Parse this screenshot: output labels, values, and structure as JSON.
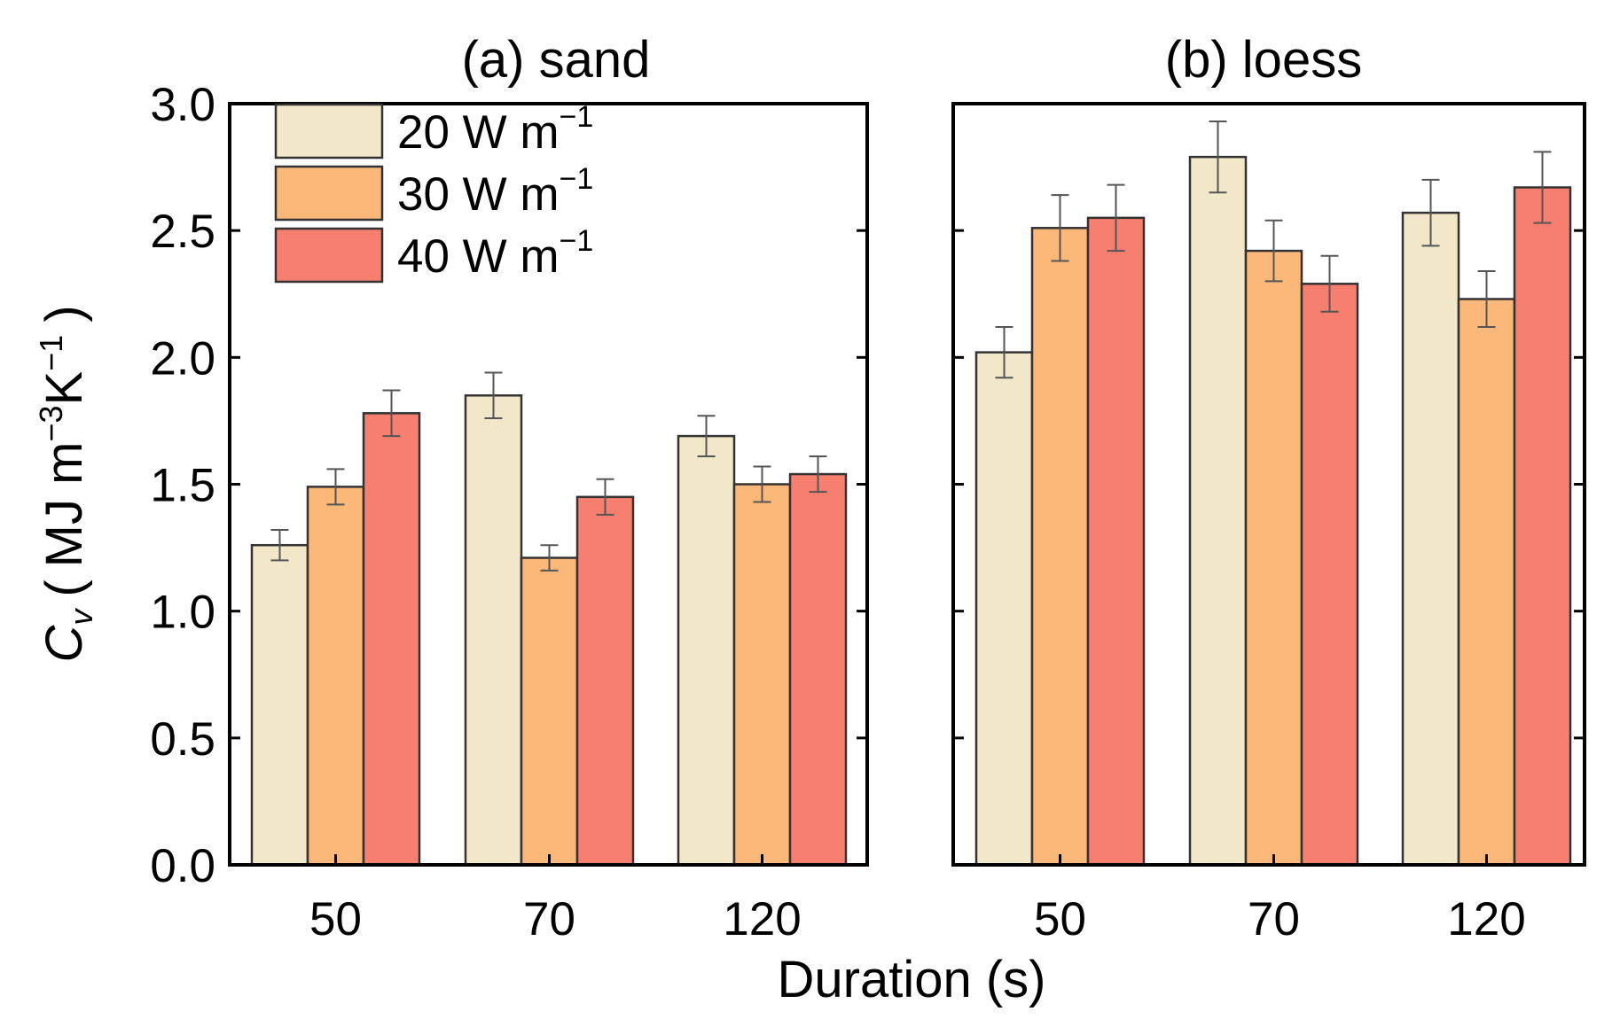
{
  "chart_data": {
    "type": "bar",
    "ylabel": {
      "symbol": "C",
      "symbol_sub": "v",
      "open": "(",
      "unit_mj": "MJ m",
      "unit_m_exp": "−3",
      "unit_k": "K",
      "unit_k_exp": "−1",
      "close": ")"
    },
    "xlabel": "Duration (s)",
    "ylim": [
      0,
      3.0
    ],
    "yticks": [
      "0.0",
      "0.5",
      "1.0",
      "1.5",
      "2.0",
      "2.5",
      "3.0"
    ],
    "ytick_values": [
      0,
      0.5,
      1.0,
      1.5,
      2.0,
      2.5,
      3.0
    ],
    "categories": [
      "50",
      "70",
      "120"
    ],
    "legend": {
      "position": "top-left",
      "entries": [
        {
          "value": "20",
          "unit": "W m",
          "exp": "−1",
          "color": "#f2e8c9"
        },
        {
          "value": "30",
          "unit": "W m",
          "exp": "−1",
          "color": "#fbb879"
        },
        {
          "value": "40",
          "unit": "W m",
          "exp": "−1",
          "color": "#f67f6f"
        }
      ]
    },
    "panels": [
      {
        "title": "(a) sand",
        "series": [
          {
            "name": "20 W m−1",
            "color": "#f2e8c9",
            "values": [
              1.26,
              1.85,
              1.69
            ],
            "errors": [
              0.06,
              0.09,
              0.08
            ]
          },
          {
            "name": "30 W m−1",
            "color": "#fbb879",
            "values": [
              1.49,
              1.21,
              1.5
            ],
            "errors": [
              0.07,
              0.05,
              0.07
            ]
          },
          {
            "name": "40 W m−1",
            "color": "#f67f6f",
            "values": [
              1.78,
              1.45,
              1.54
            ],
            "errors": [
              0.09,
              0.07,
              0.07
            ]
          }
        ]
      },
      {
        "title": "(b) loess",
        "series": [
          {
            "name": "20 W m−1",
            "color": "#f2e8c9",
            "values": [
              2.02,
              2.79,
              2.57
            ],
            "errors": [
              0.1,
              0.14,
              0.13
            ]
          },
          {
            "name": "30 W m−1",
            "color": "#fbb879",
            "values": [
              2.51,
              2.42,
              2.23
            ],
            "errors": [
              0.13,
              0.12,
              0.11
            ]
          },
          {
            "name": "40 W m−1",
            "color": "#f67f6f",
            "values": [
              2.55,
              2.29,
              2.67
            ],
            "errors": [
              0.13,
              0.11,
              0.14
            ]
          }
        ]
      }
    ]
  }
}
